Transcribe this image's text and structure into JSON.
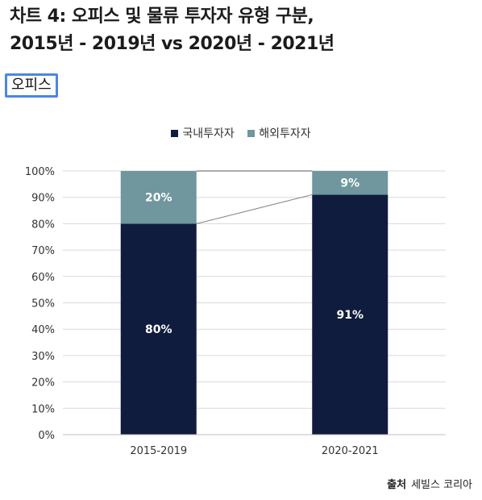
{
  "title_line1": "차트 4: 오피스 및 물류 투자자 유형 구분,",
  "title_line2": "2015년 - 2019년 vs 2020년 - 2021년",
  "tag_label": "오피스",
  "source_label": "출처",
  "source_name": "세빌스 코리아",
  "colors": {
    "domestic": "#101c3d",
    "foreign": "#6f979d",
    "grid": "#d9d9d9",
    "tag_border": "#4a86e8"
  },
  "chart_data": {
    "type": "bar",
    "stacked": true,
    "categories": [
      "2015-2019",
      "2020-2021"
    ],
    "series": [
      {
        "name": "국내투자자",
        "values": [
          80,
          91
        ],
        "labels": [
          "80%",
          "91%"
        ]
      },
      {
        "name": "해외투자자",
        "values": [
          20,
          9
        ],
        "labels": [
          "20%",
          "9%"
        ]
      }
    ],
    "ylim": [
      0,
      100
    ],
    "yticks": [
      "0%",
      "10%",
      "20%",
      "30%",
      "40%",
      "50%",
      "60%",
      "70%",
      "80%",
      "90%",
      "100%"
    ],
    "grid": true,
    "legend_position": "top"
  }
}
